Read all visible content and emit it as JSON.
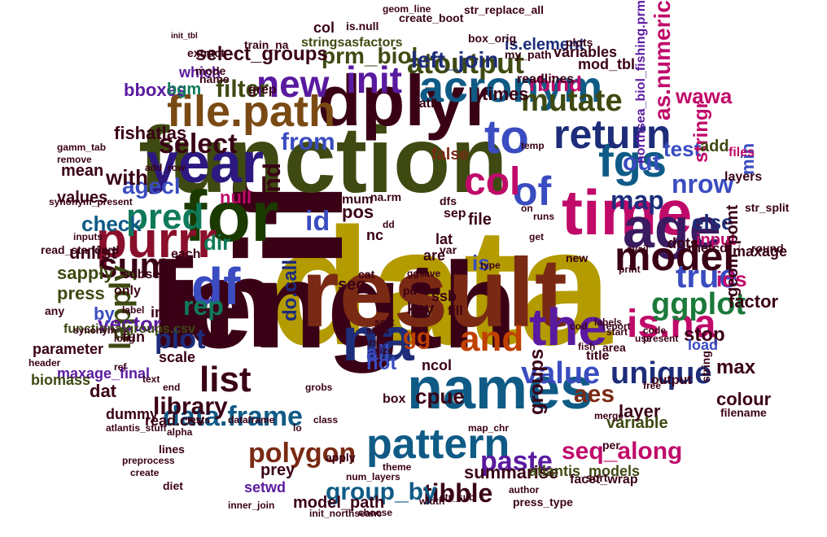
{
  "cloud": {
    "words": [
      {
        "text": "data",
        "color": "#b39b00"
      },
      {
        "text": "length",
        "color": "#3a0016"
      },
      {
        "text": "if",
        "color": "#3a0016"
      },
      {
        "text": "in",
        "color": "#3a0016"
      },
      {
        "text": "function",
        "color": "#3e4a12"
      },
      {
        "text": "result",
        "color": "#7a2a14"
      },
      {
        "text": "time",
        "color": "#c00a6a"
      },
      {
        "text": "names",
        "color": "#0f5b86"
      },
      {
        "text": "dplyr",
        "color": "#3a0016"
      },
      {
        "text": "for",
        "color": "#1a3a00"
      },
      {
        "text": "na",
        "color": "#1d2d7a"
      },
      {
        "text": "year",
        "color": "#2c1880"
      },
      {
        "text": "age",
        "color": "#3a1a60"
      },
      {
        "text": "the",
        "color": "#5a1aa0"
      },
      {
        "text": "to",
        "color": "#3a4cc0"
      },
      {
        "text": "purrr",
        "color": "#8a0f2a"
      },
      {
        "text": "acronym",
        "color": "#0f5b86"
      },
      {
        "text": "file.path",
        "color": "#7a4a14"
      },
      {
        "text": "model",
        "color": "#3a0016"
      },
      {
        "text": "pattern",
        "color": "#0f5b86"
      },
      {
        "text": "df",
        "color": "#3a4cc0"
      },
      {
        "text": "fgs",
        "color": "#0f5b86"
      },
      {
        "text": "return",
        "color": "#1d2d7a"
      },
      {
        "text": "new",
        "color": "#5a1aa0"
      },
      {
        "text": "init",
        "color": "#5a1aa0"
      },
      {
        "text": "pred",
        "color": "#0f7a5a"
      },
      {
        "text": "sum",
        "color": "#3a0016"
      },
      {
        "text": "list",
        "color": "#3a0016"
      },
      {
        "text": "is.na",
        "color": "#c00a6a"
      },
      {
        "text": "and",
        "color": "#c04000"
      },
      {
        "text": "of",
        "color": "#3a4cc0"
      },
      {
        "text": "col",
        "color": "#c00a6a"
      },
      {
        "text": "ggplot",
        "color": "#1a7a3a"
      },
      {
        "text": "mutate",
        "color": "#3e4a12"
      },
      {
        "text": "atoutput",
        "color": "#3e4a12"
      },
      {
        "text": "true",
        "color": "#3a4cc0"
      },
      {
        "text": "polygon",
        "color": "#7a2a14"
      },
      {
        "text": "data.frame",
        "color": "#0f5b86"
      },
      {
        "text": "lapply",
        "color": "#3e4a12"
      },
      {
        "text": "plot",
        "color": "#1d2d7a"
      },
      {
        "text": "select",
        "color": "#3a0016"
      },
      {
        "text": "unique",
        "color": "#1d2d7a"
      },
      {
        "text": "value",
        "color": "#3a4cc0"
      },
      {
        "text": "aes",
        "color": "#7a2a14"
      },
      {
        "text": "tibble",
        "color": "#3a0016"
      },
      {
        "text": "library",
        "color": "#3a0016"
      },
      {
        "text": "group_by",
        "color": "#0f5b86"
      },
      {
        "text": "seq_along",
        "color": "#c00a6a"
      },
      {
        "text": "paste",
        "color": "#5a1aa0"
      },
      {
        "text": "map",
        "color": "#1d2d7a"
      },
      {
        "text": "nrow",
        "color": "#3a4cc0"
      },
      {
        "text": "prm_biol",
        "color": "#3e4a12"
      },
      {
        "text": "left_join",
        "color": "#1d2d7a"
      },
      {
        "text": "filter",
        "color": "#3e4a12"
      },
      {
        "text": "select_groups",
        "color": "#3a0016"
      },
      {
        "text": "rep",
        "color": "#0f7a5a"
      },
      {
        "text": "all",
        "color": "#3a4cc0"
      },
      {
        "text": "stop",
        "color": "#3a0016"
      },
      {
        "text": "max",
        "color": "#3a0016"
      },
      {
        "text": "gg",
        "color": "#c04000"
      },
      {
        "text": "layer",
        "color": "#3a0016"
      },
      {
        "text": "is",
        "color": "#3a4cc0"
      },
      {
        "text": "out",
        "color": "#3a4cc0"
      },
      {
        "text": "agecl",
        "color": "#3a4cc0"
      },
      {
        "text": "id",
        "color": "#3a4cc0"
      },
      {
        "text": "from",
        "color": "#3a4cc0"
      },
      {
        "text": "with",
        "color": "#3a0016"
      },
      {
        "text": "null",
        "color": "#c00a6a"
      },
      {
        "text": "ind",
        "color": "#3a0016"
      },
      {
        "text": "pos",
        "color": "#3a0016"
      },
      {
        "text": "dir",
        "color": "#0f7a5a"
      },
      {
        "text": "else",
        "color": "#1d2d7a"
      },
      {
        "text": "ids",
        "color": "#c00a6a"
      },
      {
        "text": "factor",
        "color": "#3a0016"
      },
      {
        "text": "vector",
        "color": "#5a1aa0"
      },
      {
        "text": "by",
        "color": "#3a4cc0"
      },
      {
        "text": "check",
        "color": "#0f5b86"
      },
      {
        "text": "unlist",
        "color": "#3a0016"
      },
      {
        "text": "sapply",
        "color": "#3e4a12"
      },
      {
        "text": "press",
        "color": "#3e4a12"
      },
      {
        "text": "not",
        "color": "#3a4cc0"
      },
      {
        "text": "colour",
        "color": "#3a0016"
      },
      {
        "text": "cpue",
        "color": "#3a0016"
      },
      {
        "text": "prey",
        "color": "#3a0016"
      },
      {
        "text": "summarise",
        "color": "#3a0016"
      },
      {
        "text": "groups",
        "color": "#3a0016"
      },
      {
        "text": "test",
        "color": "#3a4cc0"
      },
      {
        "text": "stringr",
        "color": "#c00a6a"
      },
      {
        "text": "as.numeric",
        "color": "#c00a6a"
      },
      {
        "text": "wawa",
        "color": "#c00a6a"
      },
      {
        "text": "rbind",
        "color": "#c00a6a"
      },
      {
        "text": "col",
        "color": "#3a0016"
      },
      {
        "text": "stringsasfactors",
        "color": "#3e4a12"
      },
      {
        "text": "is.element",
        "color": "#1d2d7a"
      },
      {
        "text": "bboxes",
        "color": "#5a1aa0"
      },
      {
        "text": "fishatlas",
        "color": "#3a0016"
      },
      {
        "text": "values",
        "color": "#3a0016"
      },
      {
        "text": "mean",
        "color": "#3a0016"
      },
      {
        "text": "false",
        "color": "#7a2a14"
      },
      {
        "text": "bgm",
        "color": "#0f7a5a"
      },
      {
        "text": "which",
        "color": "#5a1aa0"
      },
      {
        "text": "times",
        "color": "#3a0016"
      },
      {
        "text": "add",
        "color": "#3e4a12"
      },
      {
        "text": "min",
        "color": "#3a4cc0"
      },
      {
        "text": "files",
        "color": "#c00a6a"
      },
      {
        "text": "input",
        "color": "#c00a6a"
      },
      {
        "text": "dots",
        "color": "#3a0016"
      },
      {
        "text": "rnetcdf",
        "color": "#3a0016"
      },
      {
        "text": "maxage",
        "color": "#3a0016"
      },
      {
        "text": "layers",
        "color": "#3a0016"
      },
      {
        "text": "load",
        "color": "#3a4cc0"
      },
      {
        "text": "string",
        "color": "#3a0016"
      },
      {
        "text": "variable",
        "color": "#3e4a12"
      },
      {
        "text": "do.call",
        "color": "#1d2d7a"
      },
      {
        "text": "init",
        "color": "#3a0016"
      },
      {
        "text": "fun",
        "color": "#3a0016"
      },
      {
        "text": "scale",
        "color": "#3a0016"
      },
      {
        "text": "dat",
        "color": "#3a0016"
      },
      {
        "text": "maxage_final",
        "color": "#5a1aa0"
      },
      {
        "text": "dummy",
        "color": "#3a0016"
      },
      {
        "text": "read.csv",
        "color": "#3a0016"
      },
      {
        "text": "setwd",
        "color": "#5a1aa0"
      },
      {
        "text": "model_path",
        "color": "#3a0016"
      },
      {
        "text": "atlantis_models",
        "color": "#3e4a12"
      },
      {
        "text": "facet_wrap",
        "color": "#3a0016"
      },
      {
        "text": "geom_point",
        "color": "#3a0016"
      },
      {
        "text": "functionalgroups.csv",
        "color": "#3e4a12"
      },
      {
        "text": "read_standard",
        "color": "#3a0016"
      },
      {
        "text": "subset",
        "color": "#3a0016"
      },
      {
        "text": "each",
        "color": "#3a0016"
      },
      {
        "text": "only",
        "color": "#3a0016"
      },
      {
        "text": "any",
        "color": "#3a0016"
      },
      {
        "text": "parameter",
        "color": "#3a0016"
      },
      {
        "text": "biomass",
        "color": "#3e4a12"
      },
      {
        "text": "ncol",
        "color": "#3a0016"
      },
      {
        "text": "box",
        "color": "#3a0016"
      },
      {
        "text": "output",
        "color": "#3a0016"
      },
      {
        "text": "filename",
        "color": "#3a0016"
      },
      {
        "text": "title",
        "color": "#3a0016"
      },
      {
        "text": "area",
        "color": "#3a0016"
      },
      {
        "text": "new",
        "color": "#3a0016"
      },
      {
        "text": "key",
        "color": "#3a0016"
      },
      {
        "text": "file",
        "color": "#3a0016"
      },
      {
        "text": "nc",
        "color": "#3a0016"
      },
      {
        "text": "are",
        "color": "#3a0016"
      },
      {
        "text": "lat",
        "color": "#3a0016"
      },
      {
        "text": "pd",
        "color": "#3a0016"
      },
      {
        "text": "seq",
        "color": "#3a0016"
      },
      {
        "text": "cat",
        "color": "#3a0016"
      },
      {
        "text": "ssb",
        "color": "#3a0016"
      },
      {
        "text": "fill",
        "color": "#3a0016"
      },
      {
        "text": "var",
        "color": "#3a0016"
      },
      {
        "text": "sep",
        "color": "#3a0016"
      },
      {
        "text": "dfs",
        "color": "#3a0016"
      },
      {
        "text": "na.rm",
        "color": "#3a0016"
      },
      {
        "text": "mum",
        "color": "#3a0016"
      },
      {
        "text": "grep",
        "color": "#3a0016"
      },
      {
        "text": "name",
        "color": "#3a0016"
      },
      {
        "text": "mode",
        "color": "#3a0016"
      },
      {
        "text": "path",
        "color": "#3a0016"
      },
      {
        "text": "mod_tbl",
        "color": "#3a0016"
      },
      {
        "text": "readlines",
        "color": "#3a0016"
      },
      {
        "text": "variables",
        "color": "#3a0016"
      },
      {
        "text": "extract",
        "color": "#3a0016"
      },
      {
        "text": "my_path",
        "color": "#3a0016"
      },
      {
        "text": "train_na",
        "color": "#3a0016"
      },
      {
        "text": "init_tbl",
        "color": "#3a0016"
      },
      {
        "text": "is.null",
        "color": "#3a0016"
      },
      {
        "text": "box_orig",
        "color": "#3a0016"
      },
      {
        "text": "plots",
        "color": "#3a0016"
      },
      {
        "text": "create_boot",
        "color": "#3a0016"
      },
      {
        "text": "geom_line",
        "color": "#3a0016"
      },
      {
        "text": "str_replace_all",
        "color": "#3a0016"
      },
      {
        "text": "northsea_biol_fishing.prm",
        "color": "#5a1aa0"
      },
      {
        "text": "str_split",
        "color": "#3a0016"
      },
      {
        "text": "round",
        "color": "#3a0016"
      },
      {
        "text": "sort",
        "color": "#3a0016"
      },
      {
        "text": "per",
        "color": "#3a0016"
      },
      {
        "text": "lines",
        "color": "#3a0016"
      },
      {
        "text": "alpha",
        "color": "#3a0016"
      },
      {
        "text": "tests",
        "color": "#3a0016"
      },
      {
        "text": "diet",
        "color": "#3a0016"
      },
      {
        "text": "create",
        "color": "#3a0016"
      },
      {
        "text": "preprocess",
        "color": "#3a0016"
      },
      {
        "text": "num_layers",
        "color": "#3a0016"
      },
      {
        "text": "apply",
        "color": "#3a0016"
      },
      {
        "text": "theme",
        "color": "#3a0016"
      },
      {
        "text": "map_chr",
        "color": "#3a0016"
      },
      {
        "text": "author",
        "color": "#3a0016"
      },
      {
        "text": "str_sub",
        "color": "#3a0016"
      },
      {
        "text": "press_type",
        "color": "#3a0016"
      },
      {
        "text": "inner_join",
        "color": "#3a0016"
      },
      {
        "text": "init_northseanc",
        "color": "#3a0016"
      },
      {
        "text": "choose",
        "color": "#3a0016"
      },
      {
        "text": "atlantis_stuff",
        "color": "#3a0016"
      },
      {
        "text": "dataframe",
        "color": "#3a0016"
      },
      {
        "text": "class",
        "color": "#3a0016"
      },
      {
        "text": "grobs",
        "color": "#3a0016"
      },
      {
        "text": "free",
        "color": "#3a0016"
      },
      {
        "text": "merge",
        "color": "#3a0016"
      },
      {
        "text": "print",
        "color": "#3a0016"
      },
      {
        "text": "code",
        "color": "#3a0016"
      },
      {
        "text": "use",
        "color": "#3a0016"
      },
      {
        "text": "start",
        "color": "#3a0016"
      },
      {
        "text": "labels",
        "color": "#3a0016"
      },
      {
        "text": "header",
        "color": "#3a0016"
      },
      {
        "text": "long",
        "color": "#3a0016"
      },
      {
        "text": "remove",
        "color": "#3a0016"
      },
      {
        "text": "label",
        "color": "#3a0016"
      },
      {
        "text": "temp",
        "color": "#3a0016"
      },
      {
        "text": "add_row",
        "color": "#3a0016"
      },
      {
        "text": "gamm_tab",
        "color": "#3a0016"
      },
      {
        "text": "synonym_present",
        "color": "#3a0016"
      },
      {
        "text": "inputs",
        "color": "#3a0016"
      },
      {
        "text": "synonym",
        "color": "#3a0016"
      },
      {
        "text": "ref",
        "color": "#3a0016"
      },
      {
        "text": "end",
        "color": "#3a0016"
      },
      {
        "text": "text",
        "color": "#3a0016"
      },
      {
        "text": "width",
        "color": "#3a0016"
      },
      {
        "text": "size",
        "color": "#3a0016"
      },
      {
        "text": "stats",
        "color": "#3a0016"
      },
      {
        "text": "split",
        "color": "#3a0016"
      },
      {
        "text": "lo",
        "color": "#3a0016"
      },
      {
        "text": "dd",
        "color": "#3a0016"
      },
      {
        "text": "on",
        "color": "#3a0016"
      },
      {
        "text": "runs",
        "color": "#3a0016"
      },
      {
        "text": "get",
        "color": "#3a0016"
      },
      {
        "text": "avail",
        "color": "#3a0016"
      },
      {
        "text": "type",
        "color": "#3a0016"
      },
      {
        "text": "vars",
        "color": "#3a0016"
      },
      {
        "text": "cod",
        "color": "#3a0016"
      },
      {
        "text": "fish",
        "color": "#3a0016"
      },
      {
        "text": "report",
        "color": "#3a0016"
      },
      {
        "text": "present",
        "color": "#3a0016"
      },
      {
        "text": "ggsave",
        "color": "#3a0016"
      }
    ]
  }
}
